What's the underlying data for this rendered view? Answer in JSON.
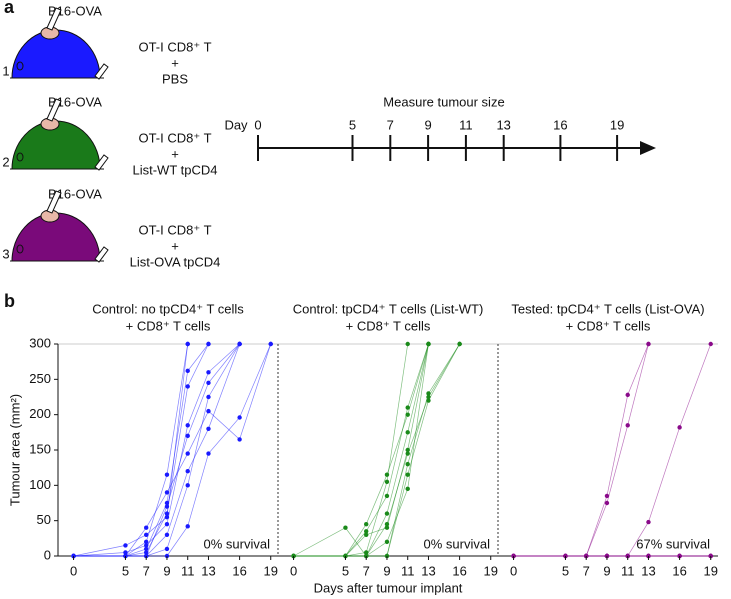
{
  "panel_a": {
    "label": "a",
    "groups": [
      {
        "number": "1",
        "tumour": "B16-OVA",
        "treatment": [
          "OT-I CD8⁺ T",
          "+",
          "PBS"
        ],
        "color": "#1a1aff"
      },
      {
        "number": "2",
        "tumour": "B16-OVA",
        "treatment": [
          "OT-I CD8⁺ T",
          "+",
          "List-WT tpCD4"
        ],
        "color": "#1a7a1a"
      },
      {
        "number": "3",
        "tumour": "B16-OVA",
        "treatment": [
          "OT-I CD8⁺ T",
          "+",
          "List-OVA tpCD4"
        ],
        "color": "#7a0a7a"
      }
    ],
    "timeline": {
      "title": "Measure tumour size",
      "label": "Day",
      "days": [
        0,
        5,
        7,
        9,
        11,
        13,
        16,
        19
      ]
    }
  },
  "panel_b": {
    "label": "b",
    "ylabel": "Tumour area (mm²)",
    "xlabel": "Days after tumour implant"
  },
  "chart_data": [
    {
      "type": "line",
      "title": [
        "Control: no tpCD4⁺ T cells",
        "+ CD8⁺ T cells"
      ],
      "annotation": "0% survival",
      "color": "#1a1aff",
      "x": [
        0,
        5,
        7,
        9,
        11,
        13,
        16,
        19
      ],
      "xlim": [
        -1.5,
        19.7
      ],
      "xticks": [
        0,
        5,
        7,
        9,
        11,
        13,
        16,
        19
      ],
      "ylim": [
        0,
        300
      ],
      "yticks": [
        0,
        50,
        100,
        150,
        200,
        250,
        300
      ],
      "series": [
        {
          "values": [
            0,
            0,
            20,
            115,
            300,
            null,
            null,
            null
          ]
        },
        {
          "values": [
            0,
            0,
            10,
            75,
            262,
            300,
            null,
            null
          ]
        },
        {
          "values": [
            0,
            0,
            5,
            60,
            240,
            300,
            null,
            null
          ]
        },
        {
          "values": [
            0,
            5,
            15,
            45,
            185,
            260,
            300,
            null
          ]
        },
        {
          "values": [
            0,
            0,
            0,
            70,
            170,
            245,
            300,
            null
          ]
        },
        {
          "values": [
            0,
            0,
            40,
            90,
            145,
            205,
            165,
            300
          ]
        },
        {
          "values": [
            0,
            0,
            0,
            30,
            120,
            180,
            300,
            null
          ]
        },
        {
          "values": [
            0,
            0,
            0,
            0,
            42,
            145,
            196,
            300
          ]
        },
        {
          "values": [
            0,
            15,
            30,
            55,
            300,
            null,
            null,
            null
          ]
        },
        {
          "values": [
            0,
            0,
            0,
            10,
            100,
            225,
            300,
            null
          ]
        }
      ]
    },
    {
      "type": "line",
      "title": [
        "Control: tpCD4⁺ T cells (List-WT)",
        "+ CD8⁺ T cells"
      ],
      "annotation": "0% survival",
      "color": "#1a8a1a",
      "x": [
        0,
        5,
        7,
        9,
        11,
        13,
        16,
        19
      ],
      "xlim": [
        -1.5,
        19.7
      ],
      "xticks": [
        0,
        5,
        7,
        9,
        11,
        13,
        16,
        19
      ],
      "ylim": [
        0,
        300
      ],
      "series": [
        {
          "values": [
            0,
            0,
            5,
            105,
            300,
            null,
            null,
            null
          ]
        },
        {
          "values": [
            0,
            0,
            35,
            85,
            210,
            300,
            null,
            null
          ]
        },
        {
          "values": [
            0,
            0,
            45,
            115,
            200,
            300,
            null,
            null
          ]
        },
        {
          "values": [
            0,
            0,
            0,
            60,
            175,
            300,
            null,
            null
          ]
        },
        {
          "values": [
            0,
            40,
            0,
            45,
            145,
            225,
            300,
            null
          ]
        },
        {
          "values": [
            0,
            0,
            0,
            0,
            130,
            230,
            300,
            null
          ]
        },
        {
          "values": [
            0,
            0,
            0,
            0,
            115,
            220,
            300,
            null
          ]
        },
        {
          "values": [
            0,
            0,
            30,
            40,
            150,
            300,
            null,
            null
          ]
        },
        {
          "values": [
            0,
            0,
            0,
            20,
            95,
            300,
            null,
            null
          ]
        }
      ]
    },
    {
      "type": "line",
      "title": [
        "Tested: tpCD4⁺ T cells (List-OVA)",
        "+ CD8⁺ T cells"
      ],
      "annotation": "67% survival",
      "color": "#8a0a8a",
      "x": [
        0,
        5,
        7,
        9,
        11,
        13,
        16,
        19
      ],
      "xlim": [
        -1.5,
        19.7
      ],
      "xticks": [
        0,
        5,
        7,
        9,
        11,
        13,
        16,
        19
      ],
      "ylim": [
        0,
        300
      ],
      "series": [
        {
          "values": [
            0,
            0,
            0,
            85,
            228,
            300,
            null,
            null
          ]
        },
        {
          "values": [
            0,
            0,
            0,
            75,
            185,
            300,
            null,
            null
          ]
        },
        {
          "values": [
            0,
            0,
            0,
            0,
            0,
            48,
            182,
            300
          ]
        },
        {
          "values": [
            0,
            0,
            0,
            0,
            0,
            0,
            0,
            0
          ]
        },
        {
          "values": [
            0,
            0,
            0,
            0,
            0,
            0,
            0,
            0
          ]
        },
        {
          "values": [
            0,
            0,
            0,
            0,
            0,
            0,
            0,
            0
          ]
        },
        {
          "values": [
            0,
            0,
            0,
            0,
            0,
            0,
            0,
            0
          ]
        },
        {
          "values": [
            0,
            0,
            0,
            0,
            0,
            0,
            0,
            0
          ]
        },
        {
          "values": [
            0,
            0,
            0,
            0,
            0,
            0,
            0,
            0
          ]
        }
      ]
    }
  ]
}
